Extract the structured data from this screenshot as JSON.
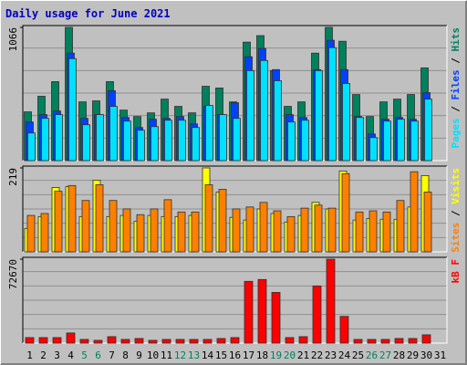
{
  "chart_data": [
    {
      "type": "bar",
      "title": "Daily usage for June 2021",
      "label_separator": " / ",
      "ylim": [
        0,
        1066
      ],
      "yticks": [
        1066
      ],
      "series": [
        {
          "name": "Pages",
          "color": "#00e0ff",
          "values": [
            221,
            338,
            368,
            816,
            287,
            368,
            434,
            316,
            243,
            272,
            323,
            323,
            265,
            441,
            368,
            338,
            720,
            801,
            639,
            309,
            323,
            720,
            904,
            617,
            345,
            184,
            316,
            331,
            316,
            492,
            null
          ]
        },
        {
          "name": "Files",
          "color": "#0040ff",
          "values": [
            309,
            368,
            397,
            860,
            338,
            368,
            559,
            345,
            265,
            331,
            338,
            353,
            294,
            434,
            368,
            463,
            831,
            897,
            728,
            368,
            345,
            728,
            963,
            728,
            353,
            213,
            331,
            345,
            331,
            544,
            null
          ]
        },
        {
          "name": "Hits",
          "color": "#00805c",
          "values": [
            390,
            515,
            632,
            1066,
            470,
            478,
            632,
            404,
            353,
            382,
            492,
            434,
            382,
            595,
            581,
            470,
            948,
            1000,
            720,
            434,
            470,
            860,
            1066,
            955,
            529,
            353,
            470,
            492,
            529,
            742,
            null
          ]
        }
      ]
    },
    {
      "type": "bar",
      "label_separator": " / ",
      "ylim": [
        0,
        219
      ],
      "yticks": [
        219
      ],
      "series": [
        {
          "name": "Sites",
          "color": "#ff8000",
          "values": [
            95,
            100,
            158,
            173,
            134,
            175,
            134,
            112,
            97,
            112,
            136,
            104,
            104,
            175,
            163,
            112,
            117,
            129,
            107,
            92,
            114,
            122,
            114,
            204,
            104,
            107,
            104,
            134,
            209,
            156,
            null
          ]
        },
        {
          "name": "Visits",
          "color": "#ffff00",
          "values": [
            61,
            92,
            168,
            170,
            92,
            187,
            92,
            95,
            80,
            95,
            92,
            92,
            95,
            219,
            156,
            90,
            83,
            112,
            100,
            78,
            95,
            129,
            112,
            211,
            83,
            87,
            85,
            85,
            117,
            199,
            null
          ]
        }
      ]
    },
    {
      "type": "bar",
      "ylim": [
        0,
        72670
      ],
      "yticks": [
        72670
      ],
      "series": [
        {
          "name": "kB F",
          "color": "#ff0000",
          "values": [
            4790,
            4790,
            4790,
            8780,
            3190,
            2390,
            5590,
            3190,
            3990,
            2390,
            3190,
            3190,
            3190,
            3190,
            3990,
            4790,
            53470,
            55060,
            43890,
            4790,
            5590,
            49480,
            72670,
            23140,
            3190,
            3190,
            3190,
            3990,
            3990,
            7180,
            null
          ]
        }
      ],
      "categories": [
        "1",
        "2",
        "3",
        "4",
        "5",
        "6",
        "7",
        "8",
        "9",
        "10",
        "11",
        "12",
        "13",
        "14",
        "15",
        "16",
        "17",
        "18",
        "19",
        "20",
        "21",
        "22",
        "23",
        "24",
        "25",
        "26",
        "27",
        "28",
        "29",
        "30",
        "31"
      ],
      "category_colors": [
        "#000000",
        "#000000",
        "#000000",
        "#000000",
        "#00805c",
        "#00805c",
        "#000000",
        "#000000",
        "#000000",
        "#000000",
        "#000000",
        "#00805c",
        "#00805c",
        "#000000",
        "#000000",
        "#000000",
        "#000000",
        "#000000",
        "#00805c",
        "#00805c",
        "#000000",
        "#000000",
        "#000000",
        "#000000",
        "#000000",
        "#00805c",
        "#00805c",
        "#000000",
        "#000000",
        "#000000",
        "#000000"
      ]
    }
  ]
}
